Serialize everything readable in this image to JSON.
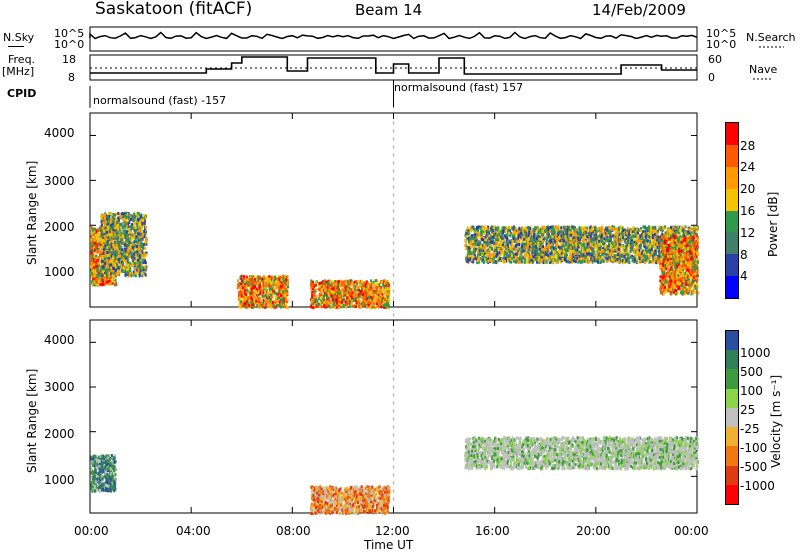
{
  "header": {
    "station": "Saskatoon (fitACF)",
    "beam": "Beam 14",
    "date": "14/Feb/2009"
  },
  "strip_labels": {
    "nsky": "N.Sky",
    "freq_line1": "Freq.",
    "freq_line2": "[MHz]",
    "cpid": "CPID",
    "nsearch": "N.Search",
    "nave": "Nave",
    "nsky_ticks": [
      "10^5",
      "10^0"
    ],
    "freq_ticks": [
      "18",
      "8"
    ],
    "nave_ticks": [
      "60",
      "0"
    ],
    "nsearch_ticks": [
      "10^5",
      "10^0"
    ]
  },
  "cpid_segments": [
    {
      "label": "normalsound (fast) -157",
      "start": "00:00"
    },
    {
      "label": "normalsound (fast) 157",
      "start": "12:00"
    }
  ],
  "axes": {
    "ylabel": "Slant Range [km]",
    "xlabel": "Time UT",
    "yticks": [
      "4000",
      "3000",
      "2000",
      "1000"
    ],
    "xticks": [
      "00:00",
      "04:00",
      "08:00",
      "12:00",
      "16:00",
      "20:00",
      "00:00"
    ]
  },
  "power_scale": {
    "label": "Power [dB]",
    "ticks": [
      "28",
      "24",
      "20",
      "16",
      "12",
      "8",
      "4"
    ],
    "colors": [
      "#ff0000",
      "#ff5a00",
      "#ff9a00",
      "#f5c400",
      "#2f9a4a",
      "#3f7f6a",
      "#2b3fa8",
      "#0000ff"
    ]
  },
  "velocity_scale": {
    "label": "Velocity [m s⁻¹]",
    "ticks": [
      "1000",
      "500",
      "100",
      "25",
      "-25",
      "-100",
      "-500",
      "-1000"
    ],
    "colors": [
      "#2a4fa0",
      "#2f7f5a",
      "#3d9a3d",
      "#8ad44a",
      "#c0c0c0",
      "#f0b030",
      "#f07a10",
      "#e03a10",
      "#ff0000"
    ]
  },
  "chart_data": {
    "type": "heatmap",
    "x_range": [
      "00:00",
      "24:00"
    ],
    "y_range_km": [
      180,
      4500
    ],
    "power_patches": [
      {
        "t0": 0.0,
        "t1": 1.0,
        "r0": 700,
        "r1": 2000,
        "level": "high"
      },
      {
        "t0": 0.4,
        "t1": 2.2,
        "r0": 900,
        "r1": 2300,
        "level": "medium"
      },
      {
        "t0": 5.8,
        "t1": 7.8,
        "r0": 200,
        "r1": 900,
        "level": "high"
      },
      {
        "t0": 8.7,
        "t1": 11.8,
        "r0": 200,
        "r1": 800,
        "level": "high"
      },
      {
        "t0": 14.8,
        "t1": 24.0,
        "r0": 1200,
        "r1": 2000,
        "level": "medium"
      },
      {
        "t0": 22.5,
        "t1": 24.0,
        "r0": 500,
        "r1": 1800,
        "level": "high"
      }
    ],
    "velocity_patches": [
      {
        "t0": 0.0,
        "t1": 1.0,
        "r0": 700,
        "r1": 1500,
        "class": "positive"
      },
      {
        "t0": 14.8,
        "t1": 24.0,
        "r0": 1200,
        "r1": 1900,
        "class": "near-zero"
      },
      {
        "t0": 8.7,
        "t1": 11.8,
        "r0": 200,
        "r1": 800,
        "class": "negative"
      }
    ]
  }
}
